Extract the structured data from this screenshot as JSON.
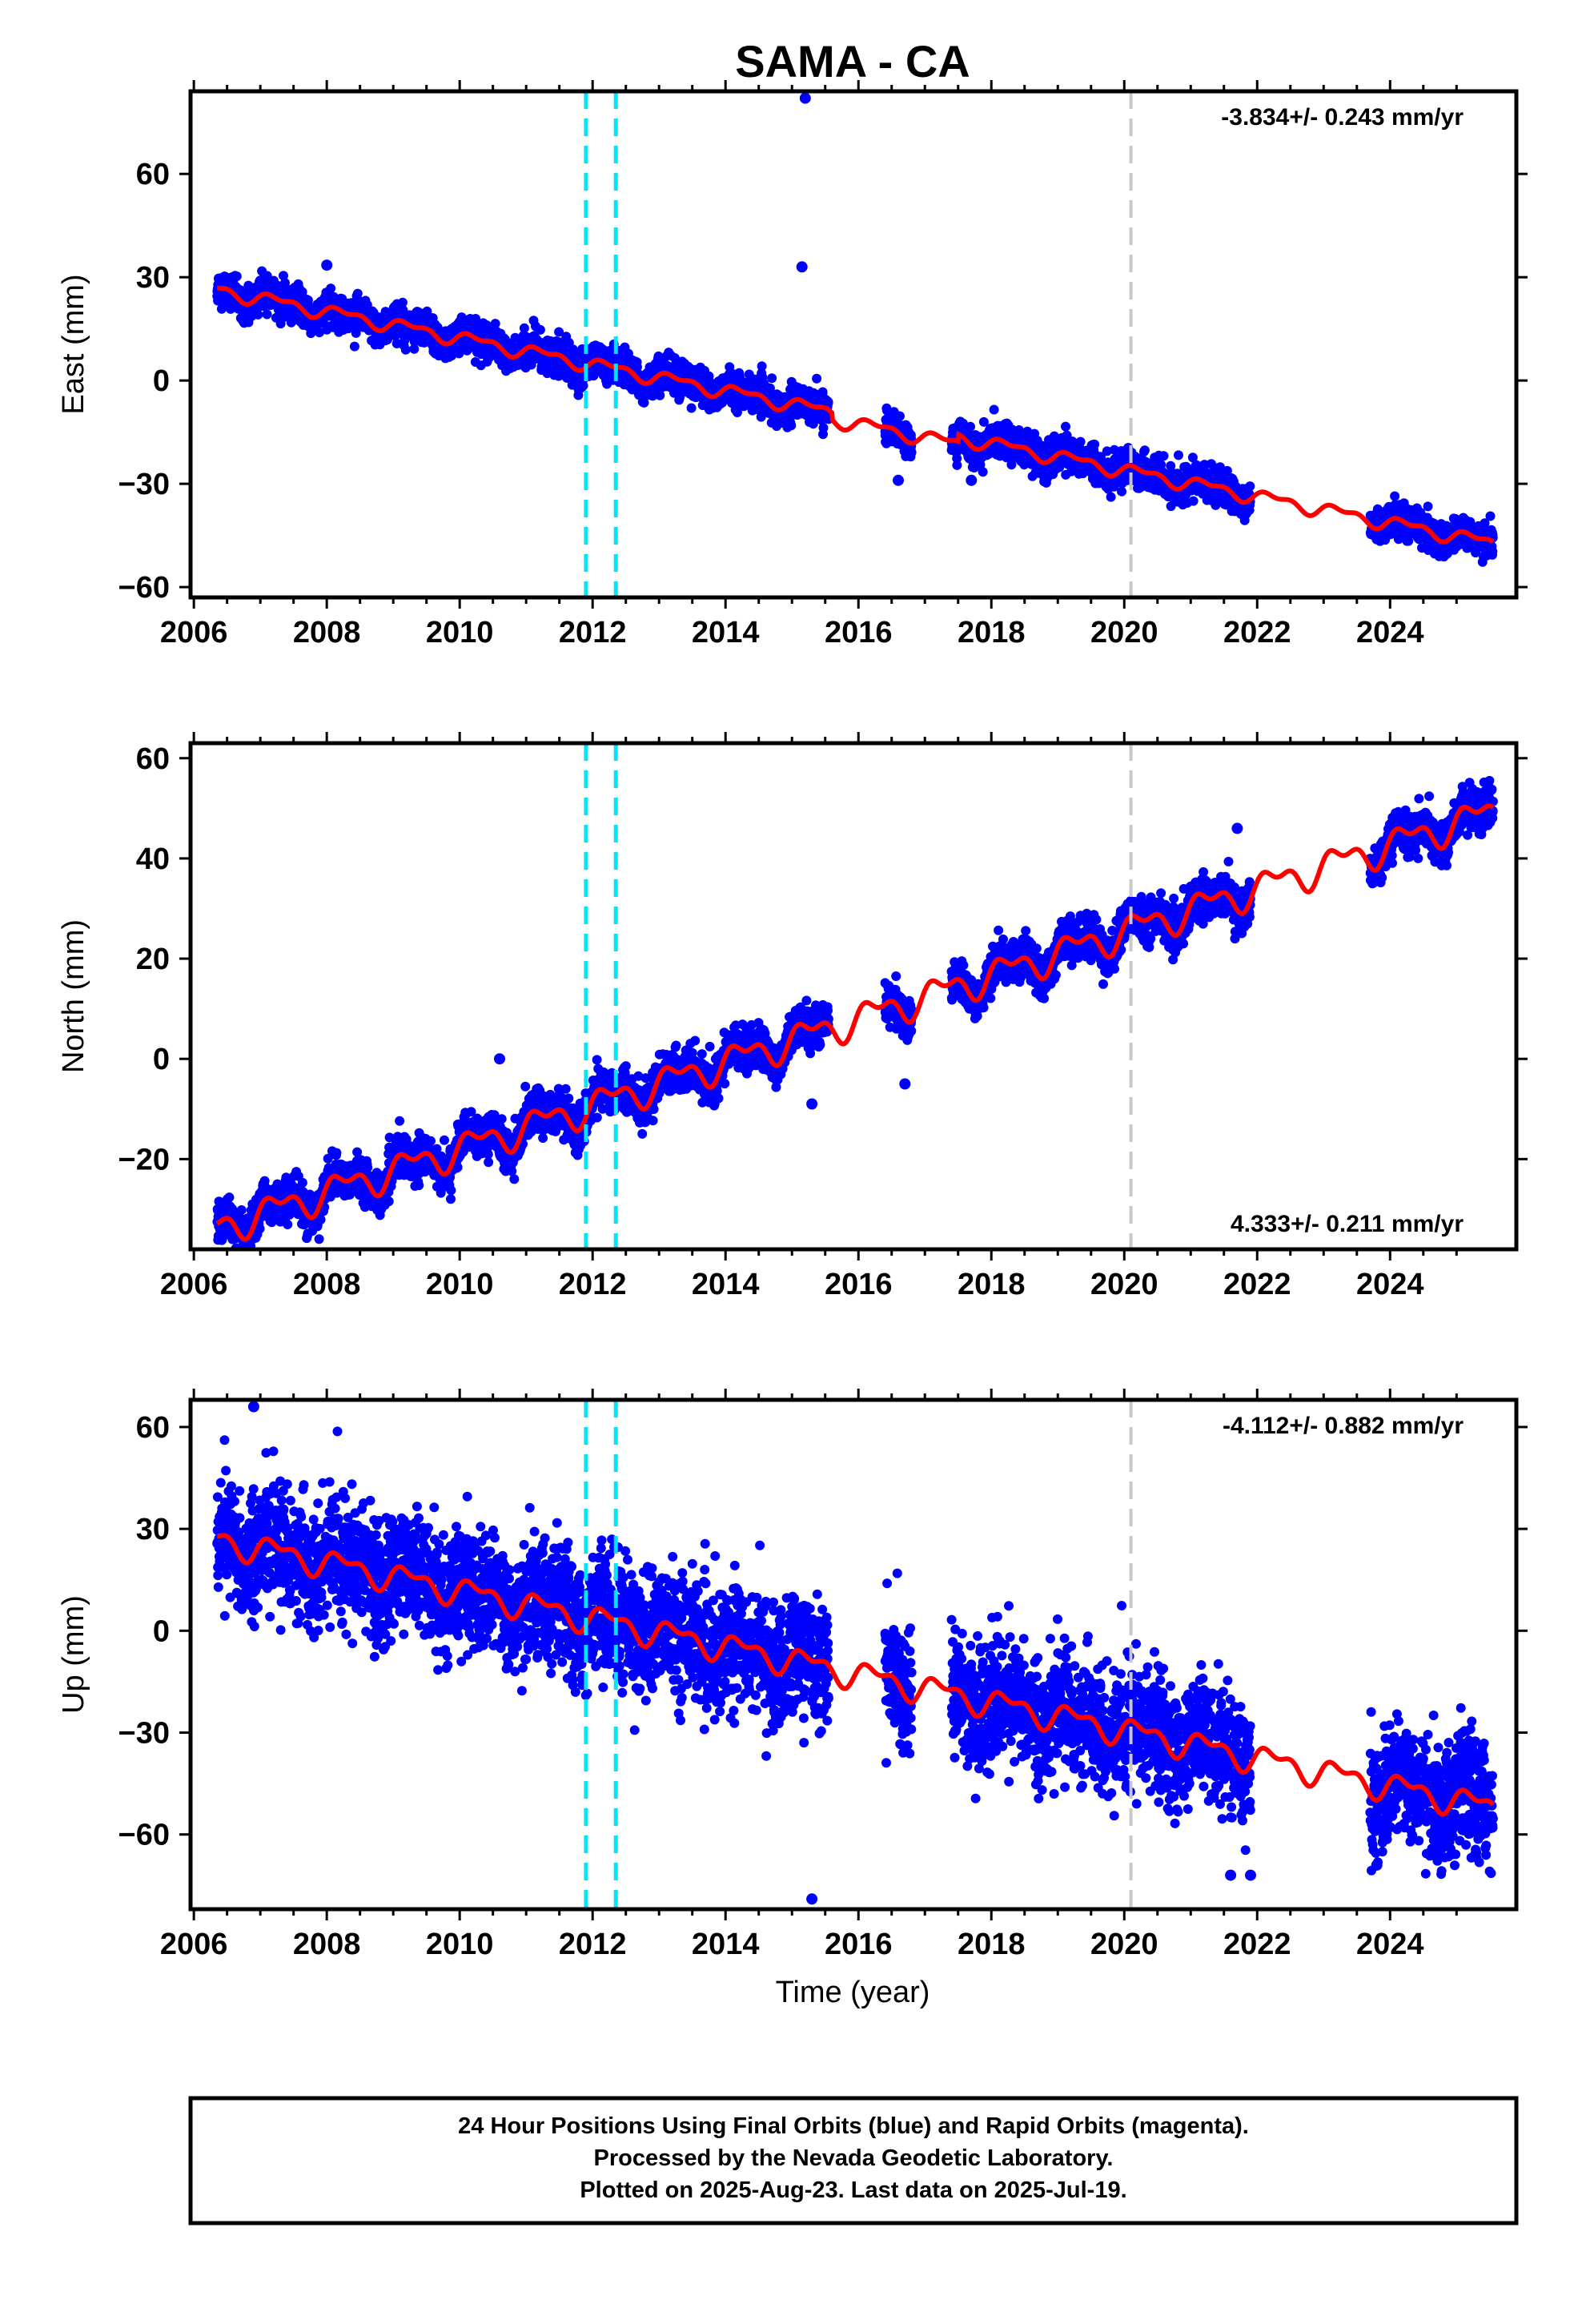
{
  "title": "SAMA - CA",
  "xlabel": "Time (year)",
  "footer": {
    "line1": "24 Hour Positions Using Final Orbits (blue) and Rapid Orbits (magenta).",
    "line2": "Processed by the Nevada Geodetic Laboratory.",
    "line3": "Plotted on 2025-Aug-23. Last data on 2025-Jul-19."
  },
  "colors": {
    "data": "#0000ff",
    "model": "#ff0000",
    "equipment_change": "#00e5ff",
    "marker": "#c8c8c8"
  },
  "chart_data": [
    {
      "type": "scatter",
      "component": "east",
      "ylabel": "East (mm)",
      "rate": "-3.834+/- 0.243 mm/yr",
      "rate_position": "top-right",
      "xlim": [
        2005.95,
        2025.9
      ],
      "ylim": [
        -63,
        84
      ],
      "xticks": [
        2006,
        2008,
        2010,
        2012,
        2014,
        2016,
        2018,
        2020,
        2022,
        2024
      ],
      "yticks": [
        -60,
        -30,
        0,
        30,
        60
      ],
      "vlines_dashed": [
        2011.9,
        2012.35
      ],
      "vline_gray": 2020.1,
      "trend_start": 26.5,
      "trend_rate": -3.834,
      "annual_amplitude": 1.6,
      "scatter_sigma": 2.3,
      "gap_offsets": [
        [
          2015.6,
          2017.5,
          -2
        ],
        [
          2021.9,
          2023.7,
          0
        ]
      ],
      "outliers": [
        [
          2015.2,
          82
        ],
        [
          2015.15,
          33
        ],
        [
          2008.0,
          33.5
        ],
        [
          2016.6,
          -29
        ],
        [
          2017.7,
          -29
        ]
      ],
      "data_gaps": [
        [
          2015.55,
          2016.4
        ],
        [
          2016.8,
          2017.4
        ],
        [
          2021.9,
          2023.7
        ]
      ]
    },
    {
      "type": "scatter",
      "component": "north",
      "ylabel": "North (mm)",
      "rate": "4.333+/- 0.211 mm/yr",
      "rate_position": "bottom-right",
      "xlim": [
        2005.95,
        2025.9
      ],
      "ylim": [
        -38,
        63
      ],
      "xticks": [
        2006,
        2008,
        2010,
        2012,
        2014,
        2016,
        2018,
        2020,
        2022,
        2024
      ],
      "yticks": [
        -20,
        0,
        20,
        40,
        60
      ],
      "vlines_dashed": [
        2011.9,
        2012.35
      ],
      "vline_gray": 2020.1,
      "trend_start": -34,
      "trend_rate": 4.333,
      "annual_amplitude": 2.6,
      "scatter_sigma": 1.9,
      "gap_offsets": [],
      "outliers": [
        [
          2010.6,
          0
        ],
        [
          2015.3,
          -9
        ],
        [
          2016.7,
          -5
        ],
        [
          2021.7,
          46
        ]
      ],
      "data_gaps": [
        [
          2015.55,
          2016.4
        ],
        [
          2016.8,
          2017.4
        ],
        [
          2021.9,
          2023.7
        ]
      ]
    },
    {
      "type": "scatter",
      "component": "up",
      "ylabel": "Up (mm)",
      "rate": "-4.112+/- 0.882 mm/yr",
      "rate_position": "top-right",
      "xlim": [
        2005.95,
        2025.9
      ],
      "ylim": [
        -82,
        68
      ],
      "xticks": [
        2006,
        2008,
        2010,
        2012,
        2014,
        2016,
        2018,
        2020,
        2022,
        2024
      ],
      "yticks": [
        -60,
        -30,
        0,
        30,
        60
      ],
      "vlines_dashed": [
        2011.9,
        2012.35
      ],
      "vline_gray": 2020.1,
      "trend_start": 27,
      "trend_rate": -4.112,
      "annual_amplitude": 3.2,
      "scatter_sigma": 8.5,
      "gap_offsets": [],
      "outliers": [
        [
          2006.9,
          66
        ],
        [
          2015.3,
          -79
        ],
        [
          2021.6,
          -72
        ],
        [
          2021.9,
          -72
        ],
        [
          2023.8,
          -69
        ]
      ],
      "data_gaps": [
        [
          2015.55,
          2016.4
        ],
        [
          2016.8,
          2017.4
        ],
        [
          2021.9,
          2023.7
        ]
      ]
    }
  ]
}
